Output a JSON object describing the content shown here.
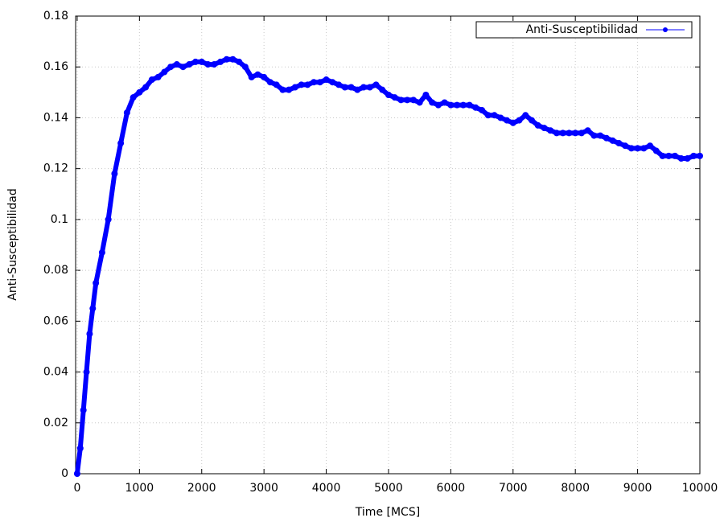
{
  "chart_data": {
    "type": "line",
    "x_label": "Time [MCS]",
    "y_label": "Anti-Susceptibilidad",
    "x": [
      0,
      50,
      100,
      150,
      200,
      250,
      300,
      400,
      500,
      600,
      700,
      800,
      900,
      1000,
      1100,
      1200,
      1300,
      1400,
      1500,
      1600,
      1700,
      1800,
      1900,
      2000,
      2100,
      2200,
      2300,
      2400,
      2500,
      2600,
      2700,
      2800,
      2900,
      3000,
      3100,
      3200,
      3300,
      3400,
      3500,
      3600,
      3700,
      3800,
      3900,
      4000,
      4100,
      4200,
      4300,
      4400,
      4500,
      4600,
      4700,
      4800,
      4900,
      5000,
      5100,
      5200,
      5300,
      5400,
      5500,
      5600,
      5700,
      5800,
      5900,
      6000,
      6100,
      6200,
      6300,
      6400,
      6500,
      6600,
      6700,
      6800,
      6900,
      7000,
      7100,
      7200,
      7300,
      7400,
      7500,
      7600,
      7700,
      7800,
      7900,
      8000,
      8100,
      8200,
      8300,
      8400,
      8500,
      8600,
      8700,
      8800,
      8900,
      9000,
      9100,
      9200,
      9300,
      9400,
      9500,
      9600,
      9700,
      9800,
      9900,
      10000
    ],
    "series": [
      {
        "name": "Anti-Susceptibilidad",
        "color": "#0000ff",
        "values": [
          0,
          0.01,
          0.025,
          0.04,
          0.055,
          0.065,
          0.075,
          0.087,
          0.1,
          0.118,
          0.13,
          0.142,
          0.148,
          0.15,
          0.152,
          0.155,
          0.156,
          0.158,
          0.16,
          0.161,
          0.16,
          0.161,
          0.162,
          0.162,
          0.161,
          0.161,
          0.162,
          0.163,
          0.163,
          0.162,
          0.16,
          0.156,
          0.157,
          0.156,
          0.154,
          0.153,
          0.151,
          0.151,
          0.152,
          0.153,
          0.153,
          0.154,
          0.154,
          0.155,
          0.154,
          0.153,
          0.152,
          0.152,
          0.151,
          0.152,
          0.152,
          0.153,
          0.151,
          0.149,
          0.148,
          0.147,
          0.147,
          0.147,
          0.146,
          0.149,
          0.146,
          0.145,
          0.146,
          0.145,
          0.145,
          0.145,
          0.145,
          0.144,
          0.143,
          0.141,
          0.141,
          0.14,
          0.139,
          0.138,
          0.139,
          0.141,
          0.139,
          0.137,
          0.136,
          0.135,
          0.134,
          0.134,
          0.134,
          0.134,
          0.134,
          0.135,
          0.133,
          0.133,
          0.132,
          0.131,
          0.13,
          0.129,
          0.128,
          0.128,
          0.128,
          0.129,
          0.127,
          0.125,
          0.125,
          0.125,
          0.124,
          0.124,
          0.125,
          0.125
        ]
      }
    ],
    "xlim": [
      -25,
      10000
    ],
    "xticks": [
      0,
      1000,
      2000,
      3000,
      4000,
      5000,
      6000,
      7000,
      8000,
      9000,
      10000
    ],
    "ylim": [
      0,
      0.18
    ],
    "yticks": [
      0,
      0.02,
      0.04,
      0.06,
      0.08,
      0.1,
      0.12,
      0.14,
      0.16,
      0.18
    ],
    "grid": true,
    "legend": "top-right"
  }
}
